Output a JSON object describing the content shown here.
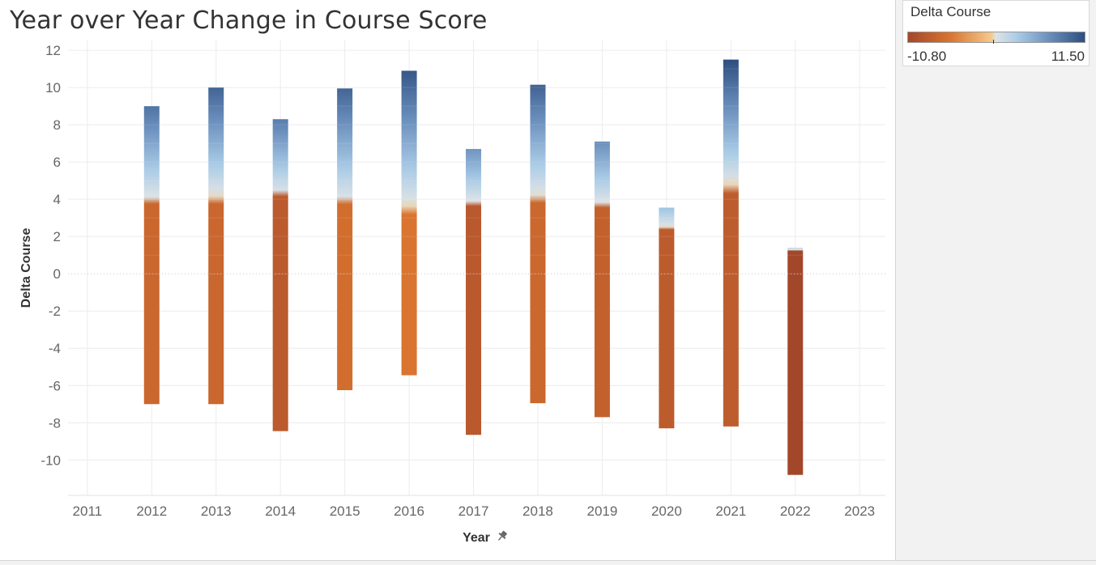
{
  "title": "Year over Year Change in Course Score",
  "legend": {
    "title": "Delta Course",
    "min_label": "-10.80",
    "max_label": "11.50",
    "colors": [
      "#a3472b",
      "#d9742f",
      "#f5c98a",
      "#dde3e6",
      "#a9cbe6",
      "#6b8fbd",
      "#2d4f80"
    ]
  },
  "chart_data": {
    "type": "bar",
    "subtype": "stacked-range-bar",
    "title": "Year over Year Change in Course Score",
    "xlabel": "Year",
    "ylabel": "Delta Course",
    "x_ticks": [
      "2011",
      "2012",
      "2013",
      "2014",
      "2015",
      "2016",
      "2017",
      "2018",
      "2019",
      "2020",
      "2021",
      "2022",
      "2023"
    ],
    "y_ticks": [
      12,
      10,
      8,
      6,
      4,
      2,
      0,
      -2,
      -4,
      -6,
      -8,
      -10
    ],
    "ylim": [
      -11.9,
      12.7
    ],
    "xlim": [
      2010.7,
      2023.4
    ],
    "grid": true,
    "color_range": [
      -10.8,
      11.5
    ],
    "categories": [
      "2012",
      "2013",
      "2014",
      "2015",
      "2016",
      "2017",
      "2018",
      "2019",
      "2020",
      "2021",
      "2022"
    ],
    "max_values": [
      9.0,
      10.0,
      8.3,
      9.95,
      10.9,
      6.7,
      10.15,
      7.1,
      3.55,
      11.5,
      1.4
    ],
    "min_values": [
      -7.0,
      -7.0,
      -8.45,
      -6.25,
      -5.45,
      -8.65,
      -6.95,
      -7.7,
      -8.3,
      -8.2,
      -10.8
    ]
  }
}
